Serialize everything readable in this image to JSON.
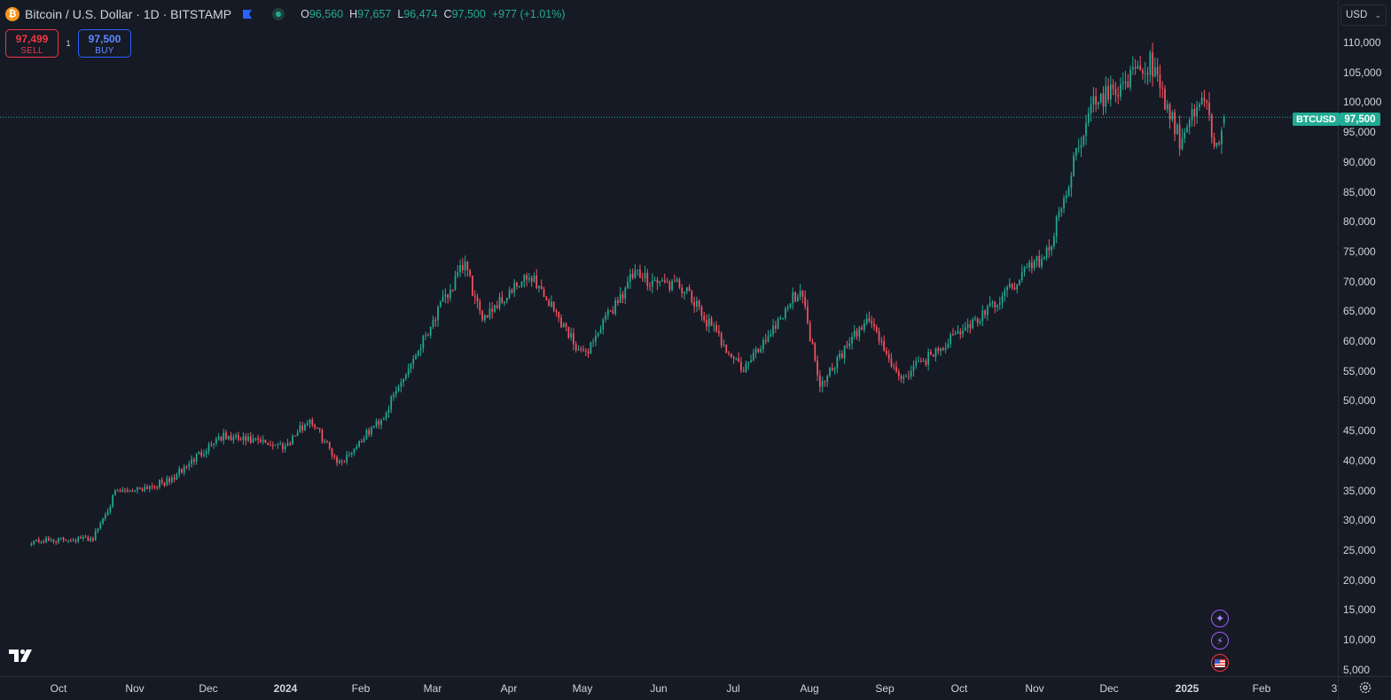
{
  "legend": {
    "title": "Bitcoin / U.S. Dollar · 1D · BITSTAMP",
    "coin_symbol": "₿",
    "open_label": "O",
    "open": "96,560",
    "high_label": "H",
    "high": "97,657",
    "low_label": "L",
    "low": "96,474",
    "close_label": "C",
    "close": "97,500",
    "change": "+977 (+1.01%)"
  },
  "trade": {
    "sell_price": "97,499",
    "sell_label": "SELL",
    "spread": "1",
    "buy_price": "97,500",
    "buy_label": "BUY"
  },
  "currency": {
    "label": "USD"
  },
  "price_axis": {
    "labels": [
      "110,000",
      "105,000",
      "100,000",
      "95,000",
      "90,000",
      "85,000",
      "80,000",
      "75,000",
      "70,000",
      "65,000",
      "60,000",
      "55,000",
      "50,000",
      "45,000",
      "40,000",
      "35,000",
      "30,000",
      "25,000",
      "20,000",
      "15,000",
      "10,000",
      "5,000"
    ]
  },
  "last_price": {
    "symbol": "BTCUSD",
    "value": "97,500"
  },
  "time_axis": {
    "labels": [
      "Oct",
      "Nov",
      "Dec",
      "2024",
      "Feb",
      "Mar",
      "Apr",
      "May",
      "Jun",
      "Jul",
      "Aug",
      "Sep",
      "Oct",
      "Nov",
      "Dec",
      "2025",
      "Feb",
      "3"
    ]
  },
  "colors": {
    "background": "#161a25",
    "up": "#22ab94",
    "down": "#f7525f",
    "sell": "#f23645",
    "buy": "#2962ff",
    "grid": "#2a2e39"
  },
  "chart_data": {
    "type": "candlestick",
    "symbol": "BTCUSD",
    "interval": "1D",
    "exchange": "BITSTAMP",
    "y_range": [
      5000,
      112000
    ],
    "x_range": [
      "2023-09-20",
      "2025-02-25"
    ],
    "grid": false,
    "closes_approx": [
      {
        "date": "2023-09-20",
        "close": 26500
      },
      {
        "date": "2023-10-15",
        "close": 27000
      },
      {
        "date": "2023-10-24",
        "close": 34500
      },
      {
        "date": "2023-11-15",
        "close": 36500
      },
      {
        "date": "2023-12-05",
        "close": 44000
      },
      {
        "date": "2024-01-01",
        "close": 42500
      },
      {
        "date": "2024-01-11",
        "close": 47000
      },
      {
        "date": "2024-01-23",
        "close": 39500
      },
      {
        "date": "2024-02-10",
        "close": 47500
      },
      {
        "date": "2024-02-28",
        "close": 62000
      },
      {
        "date": "2024-03-14",
        "close": 73000
      },
      {
        "date": "2024-03-20",
        "close": 64000
      },
      {
        "date": "2024-04-10",
        "close": 71000
      },
      {
        "date": "2024-05-01",
        "close": 57500
      },
      {
        "date": "2024-05-21",
        "close": 71000
      },
      {
        "date": "2024-06-10",
        "close": 69000
      },
      {
        "date": "2024-07-05",
        "close": 55000
      },
      {
        "date": "2024-07-28",
        "close": 69000
      },
      {
        "date": "2024-08-05",
        "close": 53000
      },
      {
        "date": "2024-08-25",
        "close": 64000
      },
      {
        "date": "2024-09-06",
        "close": 53500
      },
      {
        "date": "2024-10-15",
        "close": 66000
      },
      {
        "date": "2024-10-29",
        "close": 72500
      },
      {
        "date": "2024-11-06",
        "close": 75000
      },
      {
        "date": "2024-11-22",
        "close": 99000
      },
      {
        "date": "2024-12-17",
        "close": 106500
      },
      {
        "date": "2024-12-30",
        "close": 92500
      },
      {
        "date": "2025-01-07",
        "close": 102000
      },
      {
        "date": "2025-01-13",
        "close": 92000
      },
      {
        "date": "2025-01-16",
        "close": 97500
      }
    ]
  }
}
